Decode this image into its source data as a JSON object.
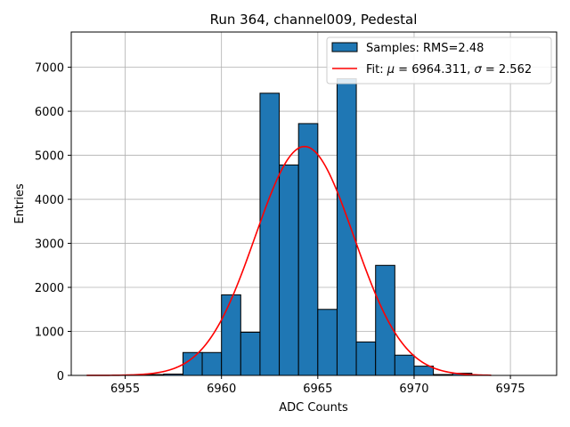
{
  "chart_data": {
    "type": "bar",
    "title": "Run 364, channel009, Pedestal",
    "xlabel": "ADC Counts",
    "ylabel": "Entries",
    "xlim": [
      6952.2,
      6977.4
    ],
    "ylim": [
      0,
      7800
    ],
    "grid": true,
    "legend_position": "top-right",
    "x_ticks": [
      6955,
      6960,
      6965,
      6970,
      6975
    ],
    "y_ticks": [
      0,
      1000,
      2000,
      3000,
      4000,
      5000,
      6000,
      7000
    ],
    "histogram": {
      "name": "Samples: RMS=2.48",
      "color": "#1f77b4",
      "edge_color": "#000000",
      "bin_width": 1.0,
      "bin_edges": [
        6954,
        6955,
        6956,
        6957,
        6958,
        6959,
        6960,
        6961,
        6962,
        6963,
        6964,
        6965,
        6966,
        6967,
        6968,
        6969,
        6970,
        6971,
        6972,
        6973,
        6974
      ],
      "counts": [
        0,
        0,
        20,
        30,
        520,
        520,
        1830,
        980,
        6410,
        4780,
        5720,
        1500,
        6740,
        760,
        2500,
        460,
        210,
        20,
        50,
        0
      ]
    },
    "fit": {
      "name_prefix": "Fit: ",
      "name_mu": "μ",
      "name_mid": " = 6964.311, ",
      "name_sigma": "σ",
      "name_suffix": " = 2.562",
      "color": "#ff0000",
      "mu": 6964.311,
      "sigma": 2.562,
      "amplitude": 5200,
      "x_range": [
        6953,
        6974
      ]
    }
  }
}
